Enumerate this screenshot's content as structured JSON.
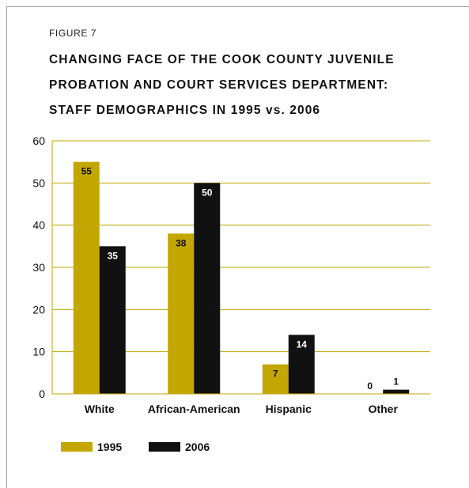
{
  "figure_label": "FIGURE 7",
  "title_lines": [
    "CHANGING FACE OF THE COOK COUNTY JUVENILE",
    "PROBATION AND COURT SERVICES DEPARTMENT:",
    "STAFF DEMOGRAPHICS IN 1995 vs. 2006"
  ],
  "colors": {
    "gold": "#C4A600",
    "black": "#111111",
    "gridline": "#C4A600",
    "axis_text": "#111111"
  },
  "chart_data": {
    "type": "bar",
    "categories": [
      "White",
      "African-American",
      "Hispanic",
      "Other"
    ],
    "series": [
      {
        "name": "1995",
        "values": [
          55,
          38,
          7,
          0
        ],
        "color": "#C4A600"
      },
      {
        "name": "2006",
        "values": [
          35,
          50,
          14,
          1
        ],
        "color": "#111111"
      }
    ],
    "ylim": [
      0,
      60
    ],
    "yticks": [
      0,
      10,
      20,
      30,
      40,
      50,
      60
    ],
    "grid": true,
    "legend_position": "bottom-left",
    "data_labels": true
  }
}
